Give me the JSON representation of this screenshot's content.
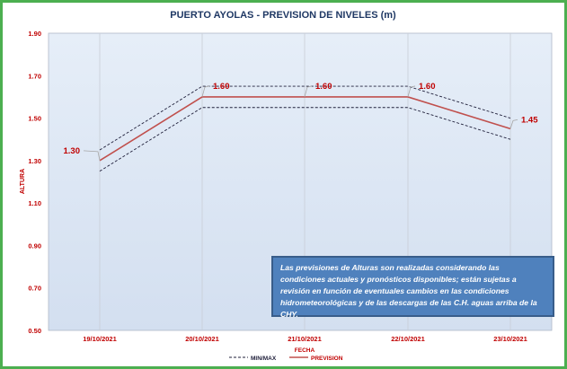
{
  "chart_data": {
    "type": "line",
    "title": "PUERTO AYOLAS - PREVISION DE NIVELES (m)",
    "xlabel": "FECHA",
    "ylabel": "ALTURA",
    "categories": [
      "19/10/2021",
      "20/10/2021",
      "21/10/2021",
      "22/10/2021",
      "23/10/2021"
    ],
    "ylim": [
      0.5,
      1.9
    ],
    "yticks": [
      "0.50",
      "0.70",
      "0.90",
      "1.10",
      "1.30",
      "1.50",
      "1.70",
      "1.90"
    ],
    "series": [
      {
        "name": "MIN/MAX",
        "role": "max",
        "values": [
          1.35,
          1.65,
          1.65,
          1.65,
          1.5
        ]
      },
      {
        "name": "MIN/MAX",
        "role": "min",
        "values": [
          1.25,
          1.55,
          1.55,
          1.55,
          1.4
        ]
      },
      {
        "name": "PREVISION",
        "values": [
          1.3,
          1.6,
          1.6,
          1.6,
          1.45
        ]
      }
    ],
    "data_labels": [
      "1.30",
      "1.60",
      "1.60",
      "1.60",
      "1.45"
    ],
    "legend": [
      "MIN/MAX",
      "PREVISION"
    ],
    "legend_position": "bottom",
    "grid": "vertical",
    "colors": {
      "prevision": "#c0504d",
      "minmax": "#1f1f3a",
      "plot_bg": "#dce6f2",
      "frame": "#4caf50",
      "title": "#1f3864",
      "axis_text": "#c00000",
      "label": "#c00000"
    }
  },
  "note": "Las previsiones de Alturas son realizadas considerando las condiciones actuales y pronósticos disponibles;  están sujetas a revisión en función de eventuales cambios en las condiciones hidrometeorológicas y de las descargas de las C.H. aguas arriba de la CHY."
}
